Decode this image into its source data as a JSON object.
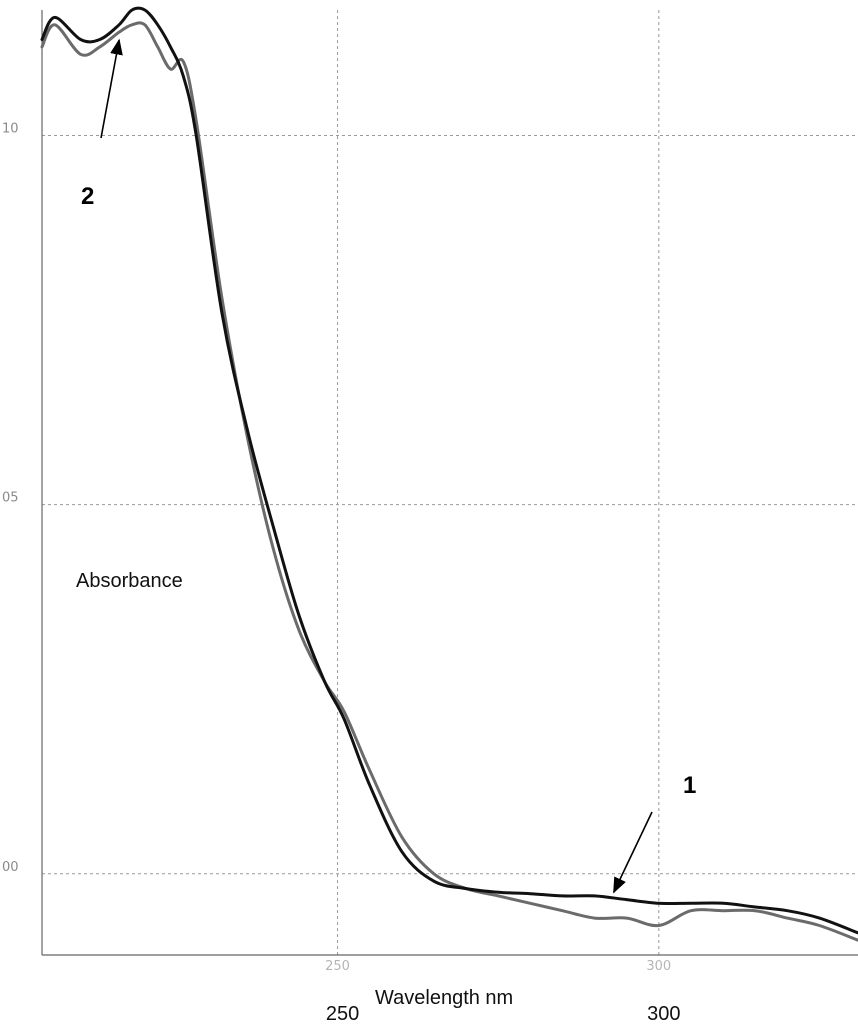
{
  "chart_data": {
    "type": "line",
    "title": "",
    "xlabel": "Wavelength nm",
    "ylabel": "Absorbance",
    "xlim": [
      204,
      331
    ],
    "ylim": [
      -0.11,
      1.17
    ],
    "grid": true,
    "x_ticks": [
      250,
      300
    ],
    "x_tick_labels": [
      "250",
      "300"
    ],
    "x_tick_labels_faint": [
      "250",
      "300"
    ],
    "y_ticks": [
      0.0,
      0.5,
      1.0
    ],
    "y_tick_labels": [
      "00",
      "05",
      "10"
    ],
    "annotations": [
      {
        "text": "1",
        "series": 0,
        "x": 293
      },
      {
        "text": "2",
        "series": 1,
        "x": 216
      }
    ],
    "series": [
      {
        "name": "",
        "color": "#111111",
        "x": [
          204,
          206,
          210,
          213,
          216,
          218,
          220,
          222,
          224,
          226,
          228,
          232,
          236,
          240,
          244,
          248,
          251,
          255,
          260,
          265,
          270,
          275,
          280,
          285,
          290,
          295,
          300,
          305,
          310,
          315,
          320,
          325,
          331
        ],
        "y": [
          1.13,
          1.16,
          1.13,
          1.13,
          1.15,
          1.17,
          1.17,
          1.15,
          1.12,
          1.08,
          1.0,
          0.76,
          0.6,
          0.47,
          0.35,
          0.26,
          0.21,
          0.12,
          0.03,
          -0.01,
          -0.02,
          -0.025,
          -0.027,
          -0.03,
          -0.03,
          -0.035,
          -0.04,
          -0.04,
          -0.04,
          -0.045,
          -0.05,
          -0.06,
          -0.08
        ]
      },
      {
        "name": "",
        "color": "#6b6b6b",
        "x": [
          204,
          206,
          210,
          213,
          216,
          218,
          220,
          222,
          224,
          226,
          228,
          232,
          236,
          240,
          244,
          248,
          251,
          255,
          260,
          265,
          270,
          275,
          280,
          285,
          290,
          295,
          300,
          305,
          310,
          315,
          320,
          325,
          331
        ],
        "y": [
          1.12,
          1.15,
          1.11,
          1.12,
          1.14,
          1.15,
          1.15,
          1.12,
          1.09,
          1.1,
          1.02,
          0.78,
          0.59,
          0.44,
          0.33,
          0.26,
          0.22,
          0.14,
          0.05,
          0.0,
          -0.02,
          -0.03,
          -0.04,
          -0.05,
          -0.06,
          -0.06,
          -0.07,
          -0.05,
          -0.05,
          -0.05,
          -0.06,
          -0.07,
          -0.09
        ]
      }
    ]
  }
}
